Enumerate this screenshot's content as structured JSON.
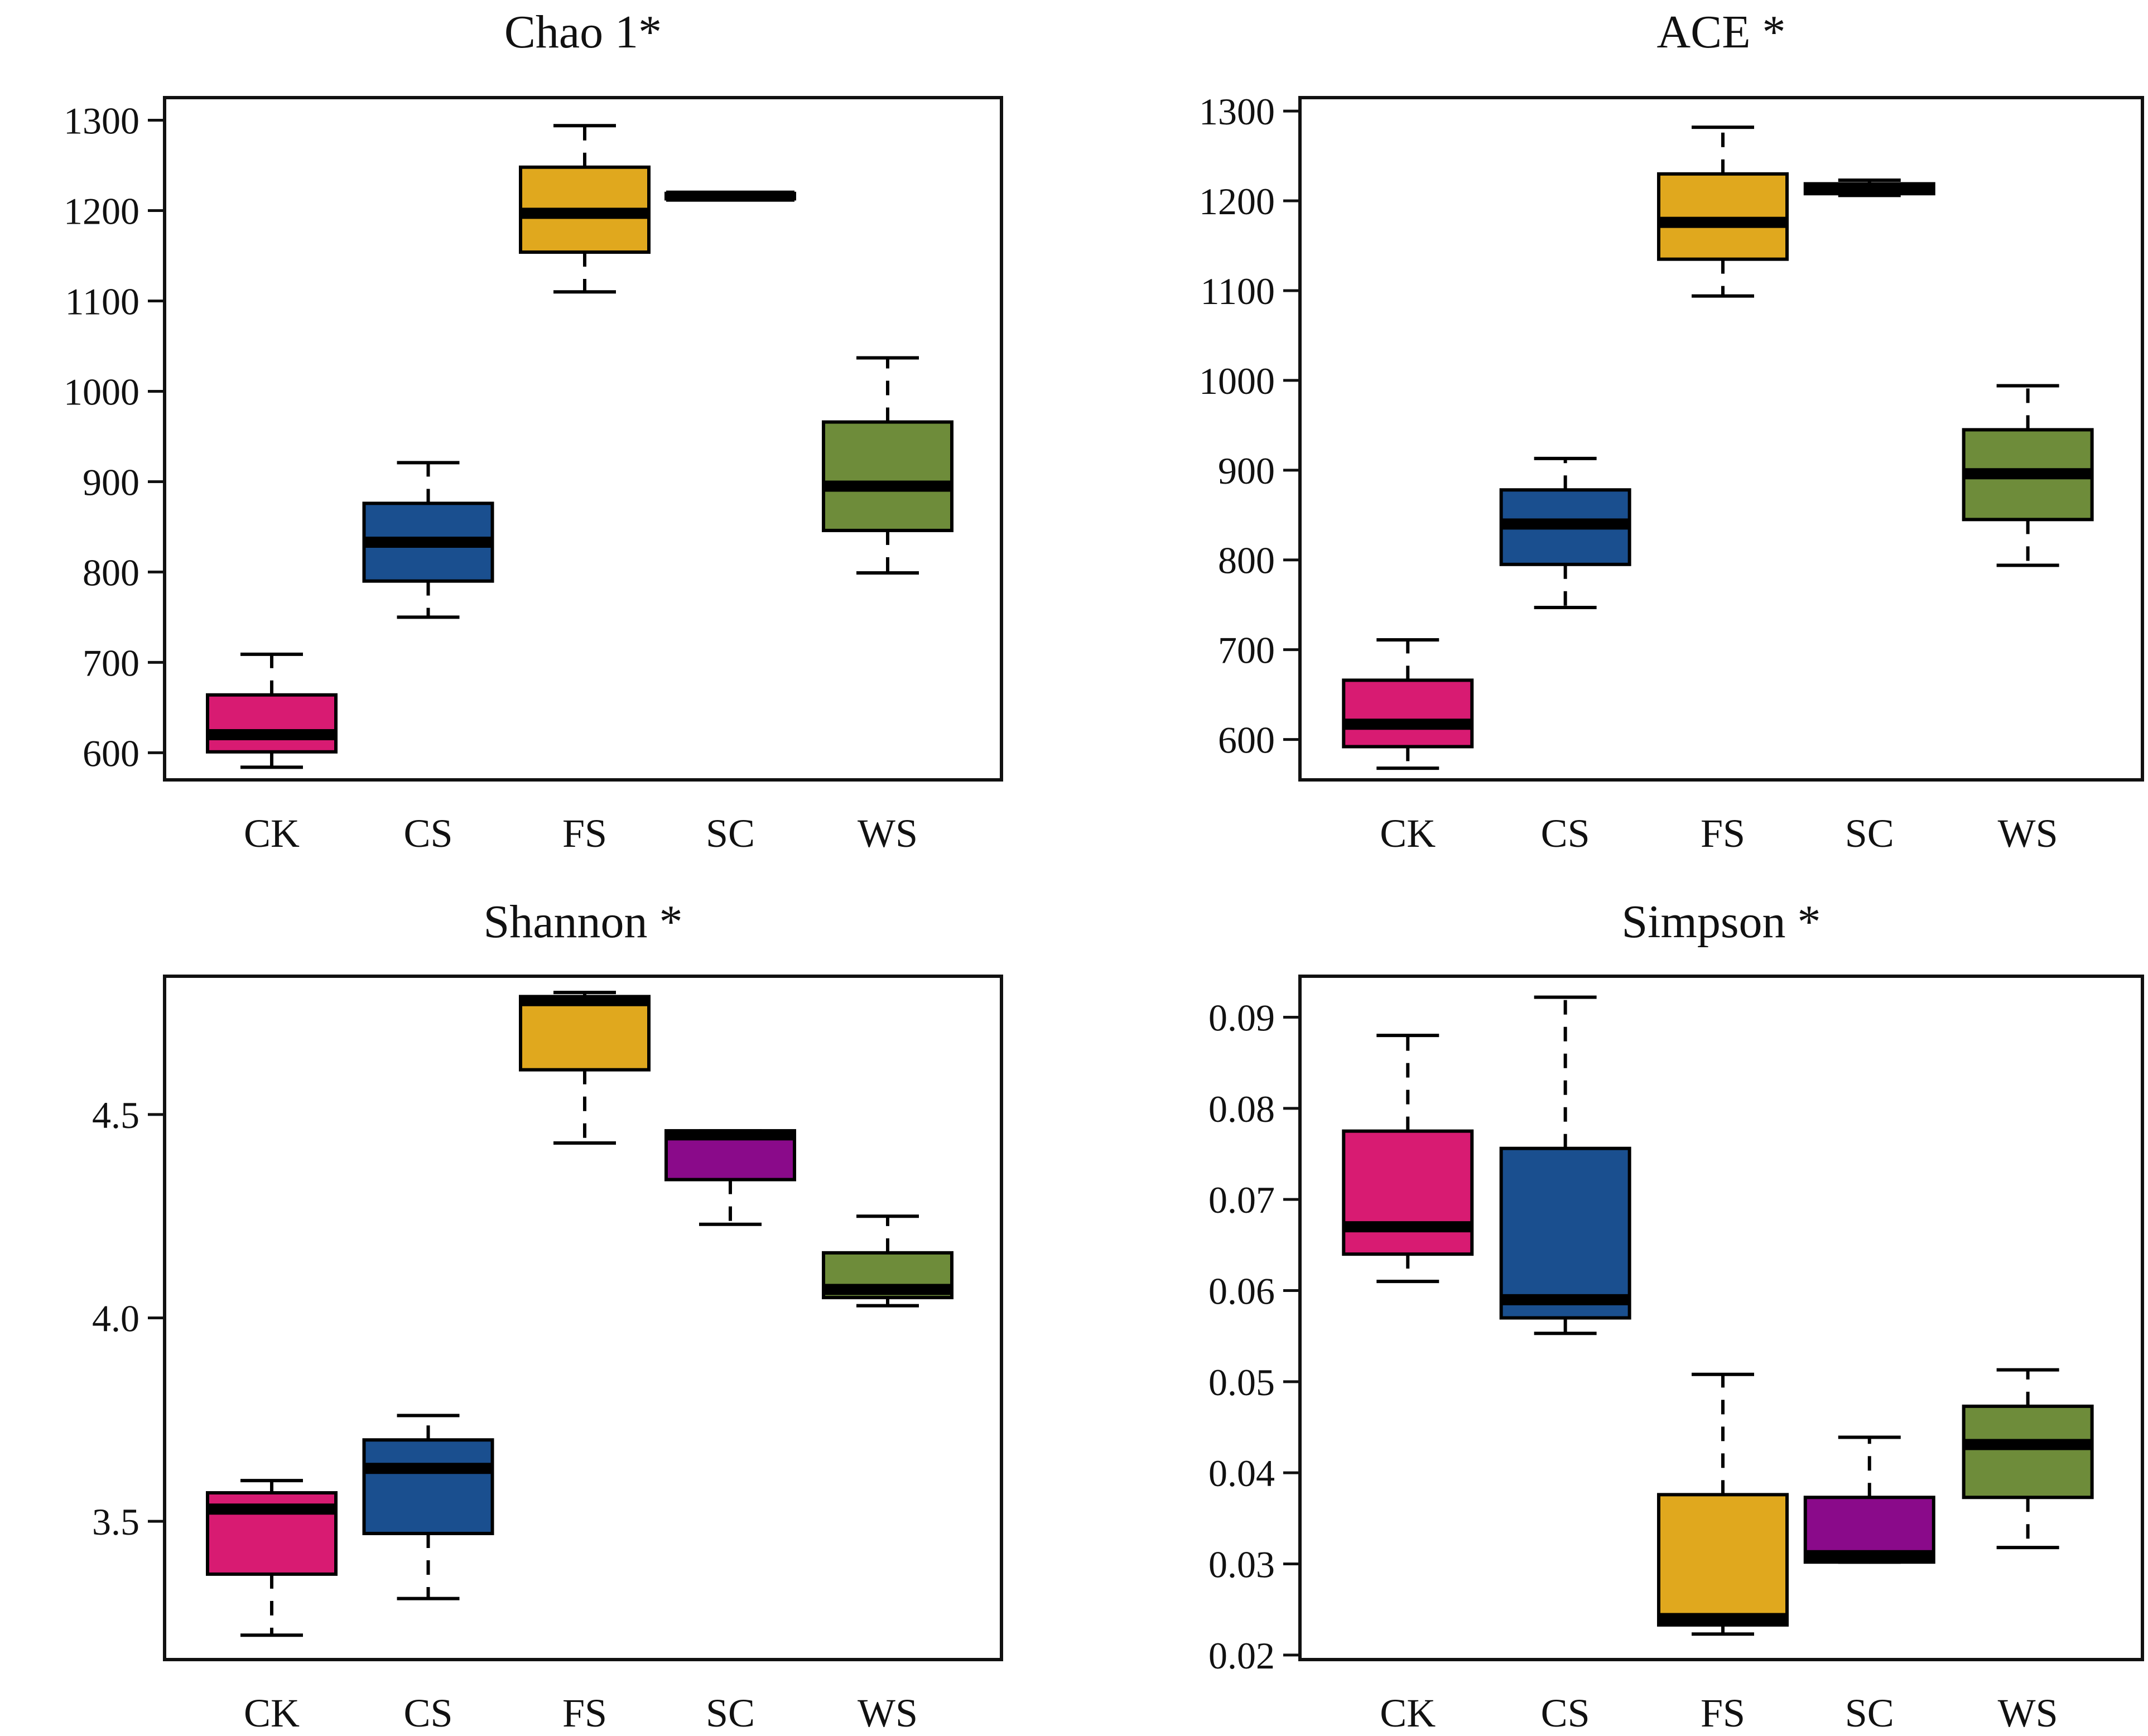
{
  "figure_title": "",
  "styles": {
    "colors": {
      "CK": "#d81b72",
      "CS": "#1a4f8f",
      "FS": "#e0a81e",
      "SC": "#8a0a8a",
      "WS": "#6e8c3a",
      "frame": "#111111",
      "median": "#000000"
    }
  },
  "chart_data": [
    {
      "type": "boxplot",
      "title": "Chao 1*",
      "categories": [
        "CK",
        "CS",
        "FS",
        "SC",
        "WS"
      ],
      "ylim": [
        570,
        1325
      ],
      "yticks": [
        600,
        700,
        800,
        900,
        1000,
        1100,
        1200,
        1300
      ],
      "ytick_labels": [
        "600",
        "700",
        "800",
        "900",
        "1000",
        "1100",
        "1200",
        "1300"
      ],
      "boxes": [
        {
          "group": "CK",
          "min": 584,
          "q1": 601,
          "median": 620,
          "q3": 664,
          "max": 709
        },
        {
          "group": "CS",
          "min": 750,
          "q1": 790,
          "median": 833,
          "q3": 876,
          "max": 921
        },
        {
          "group": "FS",
          "min": 1110,
          "q1": 1154,
          "median": 1197,
          "q3": 1248,
          "max": 1294
        },
        {
          "group": "SC",
          "min": 1213,
          "q1": 1213,
          "median": 1216,
          "q3": 1219,
          "max": 1219
        },
        {
          "group": "WS",
          "min": 799,
          "q1": 846,
          "median": 895,
          "q3": 966,
          "max": 1037
        }
      ]
    },
    {
      "type": "boxplot",
      "title": "ACE *",
      "categories": [
        "CK",
        "CS",
        "FS",
        "SC",
        "WS"
      ],
      "ylim": [
        555,
        1315
      ],
      "yticks": [
        600,
        700,
        800,
        900,
        1000,
        1100,
        1200,
        1300
      ],
      "ytick_labels": [
        "600",
        "700",
        "800",
        "900",
        "1000",
        "1100",
        "1200",
        "1300"
      ],
      "boxes": [
        {
          "group": "CK",
          "min": 568,
          "q1": 592,
          "median": 617,
          "q3": 666,
          "max": 711
        },
        {
          "group": "CS",
          "min": 747,
          "q1": 795,
          "median": 840,
          "q3": 878,
          "max": 913
        },
        {
          "group": "FS",
          "min": 1094,
          "q1": 1135,
          "median": 1176,
          "q3": 1230,
          "max": 1282
        },
        {
          "group": "SC",
          "min": 1206,
          "q1": 1208,
          "median": 1213,
          "q3": 1219,
          "max": 1223
        },
        {
          "group": "WS",
          "min": 794,
          "q1": 845,
          "median": 896,
          "q3": 945,
          "max": 994
        }
      ]
    },
    {
      "type": "boxplot",
      "title": "Shannon *",
      "categories": [
        "CK",
        "CS",
        "FS",
        "SC",
        "WS"
      ],
      "ylim": [
        3.16,
        4.84
      ],
      "yticks": [
        3.5,
        4.0,
        4.5
      ],
      "ytick_labels": [
        "3.5",
        "4.0",
        "4.5"
      ],
      "boxes": [
        {
          "group": "CK",
          "min": 3.22,
          "q1": 3.37,
          "median": 3.53,
          "q3": 3.57,
          "max": 3.6
        },
        {
          "group": "CS",
          "min": 3.31,
          "q1": 3.47,
          "median": 3.63,
          "q3": 3.7,
          "max": 3.76
        },
        {
          "group": "FS",
          "min": 4.43,
          "q1": 4.61,
          "median": 4.78,
          "q3": 4.79,
          "max": 4.8
        },
        {
          "group": "SC",
          "min": 4.23,
          "q1": 4.34,
          "median": 4.45,
          "q3": 4.46,
          "max": 4.46
        },
        {
          "group": "WS",
          "min": 4.03,
          "q1": 4.05,
          "median": 4.07,
          "q3": 4.16,
          "max": 4.25
        }
      ]
    },
    {
      "type": "boxplot",
      "title": "Simpson *",
      "categories": [
        "CK",
        "CS",
        "FS",
        "SC",
        "WS"
      ],
      "ylim": [
        0.0195,
        0.0945
      ],
      "yticks": [
        0.02,
        0.03,
        0.04,
        0.05,
        0.06,
        0.07,
        0.08,
        0.09
      ],
      "ytick_labels": [
        "0.02",
        "0.03",
        "0.04",
        "0.05",
        "0.06",
        "0.07",
        "0.08",
        "0.09"
      ],
      "boxes": [
        {
          "group": "CK",
          "min": 0.061,
          "q1": 0.064,
          "median": 0.067,
          "q3": 0.0775,
          "max": 0.088
        },
        {
          "group": "CS",
          "min": 0.0553,
          "q1": 0.057,
          "median": 0.059,
          "q3": 0.0756,
          "max": 0.0922
        },
        {
          "group": "FS",
          "min": 0.0223,
          "q1": 0.0233,
          "median": 0.024,
          "q3": 0.0376,
          "max": 0.0508
        },
        {
          "group": "SC",
          "min": 0.0302,
          "q1": 0.0302,
          "median": 0.0309,
          "q3": 0.0373,
          "max": 0.0439
        },
        {
          "group": "WS",
          "min": 0.0318,
          "q1": 0.0373,
          "median": 0.0431,
          "q3": 0.0473,
          "max": 0.0513
        }
      ]
    }
  ]
}
